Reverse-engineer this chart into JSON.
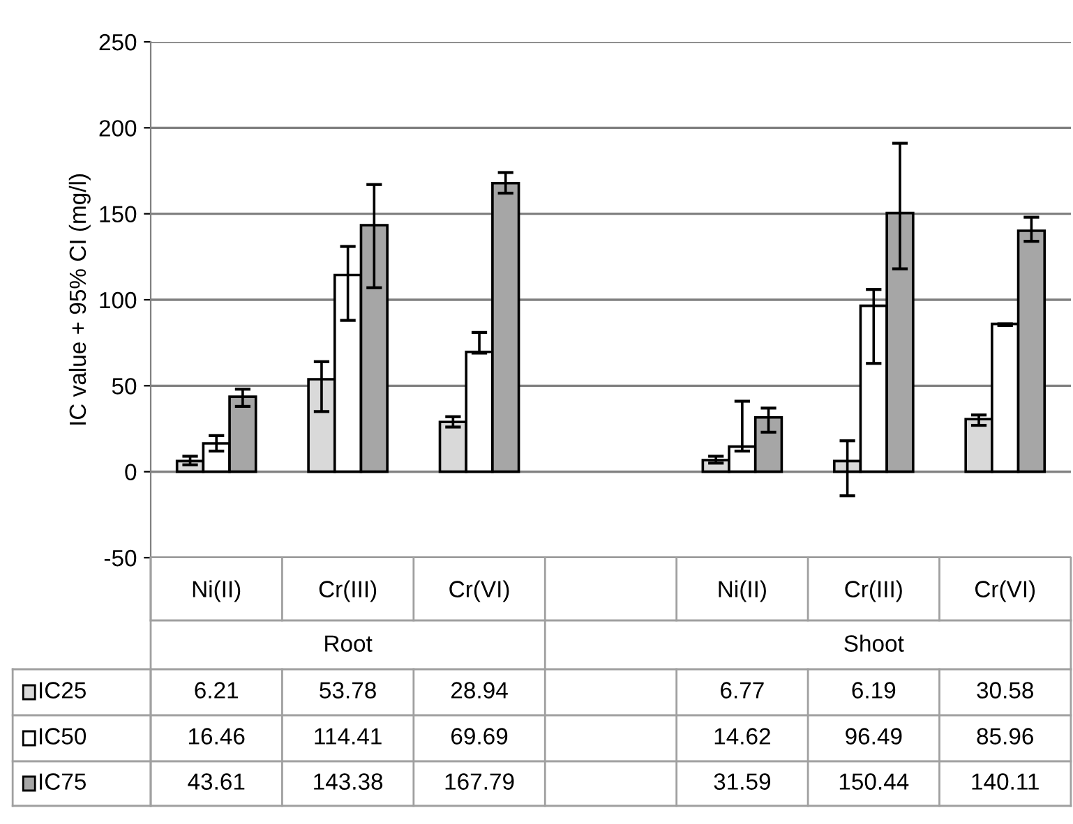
{
  "chart_data": {
    "type": "bar",
    "ylabel": "IC value + 95% CI (mg/l)",
    "categories": [
      "Ni(II)",
      "Cr(III)",
      "Cr(VI)",
      null,
      "Ni(II)",
      "Cr(III)",
      "Cr(VI)"
    ],
    "series": [
      {
        "name": "IC25",
        "color": "#d9d9d9",
        "values": [
          6.21,
          53.78,
          28.94,
          null,
          6.77,
          6.19,
          30.58
        ],
        "errors": [
          [
            4,
            9
          ],
          [
            35,
            64
          ],
          [
            26,
            32
          ],
          null,
          [
            5,
            9
          ],
          [
            -14,
            18
          ],
          [
            27,
            33
          ]
        ]
      },
      {
        "name": "IC50",
        "color": "#ffffff",
        "values": [
          16.46,
          114.41,
          69.69,
          null,
          14.62,
          96.49,
          85.96
        ],
        "errors": [
          [
            12,
            21
          ],
          [
            88,
            131
          ],
          [
            69,
            81
          ],
          null,
          [
            12,
            41
          ],
          [
            63,
            106
          ],
          [
            85,
            86
          ]
        ]
      },
      {
        "name": "IC75",
        "color": "#a6a6a6",
        "values": [
          43.61,
          143.38,
          167.79,
          null,
          31.59,
          150.44,
          140.11
        ],
        "errors": [
          [
            38,
            48
          ],
          [
            107,
            167
          ],
          [
            162,
            174
          ],
          null,
          [
            23,
            37
          ],
          [
            118,
            191
          ],
          [
            134,
            148
          ]
        ]
      }
    ],
    "annotations": [
      "Root",
      "Shoot"
    ],
    "ylim": [
      -50,
      250
    ],
    "yticks": [
      -50,
      0,
      50,
      100,
      150,
      200,
      250
    ],
    "grid": "y",
    "legend": "bottom",
    "data_labels": true
  }
}
